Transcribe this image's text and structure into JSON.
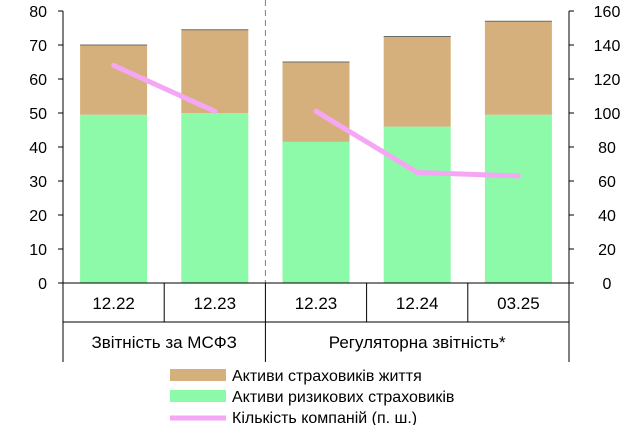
{
  "chart_data": {
    "type": "bar",
    "stacked": true,
    "categories": [
      "12.22",
      "12.23",
      "12.23",
      "12.24",
      "03.25"
    ],
    "groups": [
      {
        "label": "Звітність за МСФЗ",
        "categories": [
          0,
          1
        ]
      },
      {
        "label": "Регуляторна звітність*",
        "categories": [
          2,
          3,
          4
        ]
      }
    ],
    "series": [
      {
        "name": "Активи ризикових страховиків",
        "type": "bar",
        "axis": "left",
        "color": "#8cfaa8",
        "values": [
          49.5,
          50,
          41.5,
          46,
          49.5
        ]
      },
      {
        "name": "Активи страховиків життя",
        "type": "bar",
        "axis": "left",
        "color": "#d6b07c",
        "values": [
          20.5,
          24.5,
          23.5,
          26.5,
          27.5
        ]
      },
      {
        "name": "Кількість компаній (п. ш.)",
        "type": "line",
        "axis": "right",
        "color": "#f5a6f5",
        "values": [
          128,
          101,
          101,
          65,
          63
        ]
      }
    ],
    "left_axis": {
      "min": 0,
      "max": 80,
      "step": 10,
      "ticks": [
        "0",
        "10",
        "20",
        "30",
        "40",
        "50",
        "60",
        "70",
        "80"
      ]
    },
    "right_axis": {
      "min": 0,
      "max": 160,
      "step": 20,
      "ticks": [
        "0",
        "20",
        "40",
        "60",
        "80",
        "100",
        "120",
        "140",
        "160"
      ]
    },
    "legend_order": [
      1,
      0,
      2
    ],
    "legend_position": "bottom",
    "grid": false
  }
}
